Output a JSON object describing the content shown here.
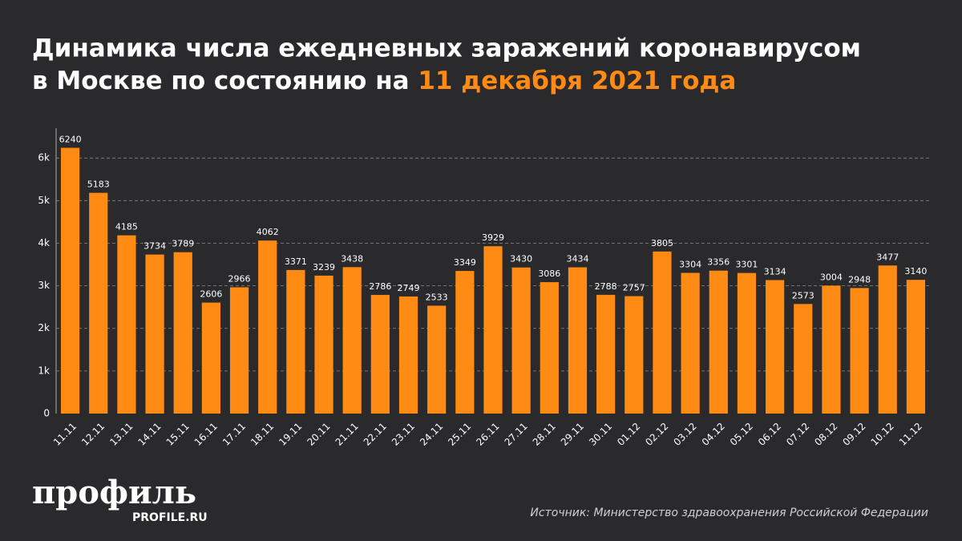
{
  "chart_data": {
    "type": "bar",
    "title": "Динамика числа ежедневных заражений коронавирусом",
    "title_line2": "в Москве по состоянию на",
    "title_date": "11 декабря 2021 года",
    "categories": [
      "11.11",
      "12.11",
      "13.11",
      "14.11",
      "15.11",
      "16.11",
      "17.11",
      "18.11",
      "19.11",
      "20.11",
      "21.11",
      "22.11",
      "23.11",
      "24.11",
      "25.11",
      "26.11",
      "27.11",
      "28.11",
      "29.11",
      "30.11",
      "01.12",
      "02.12",
      "03.12",
      "04.12",
      "05.12",
      "06.12",
      "07.12",
      "08.12",
      "09.12",
      "10.12",
      "11.12"
    ],
    "values": [
      6240,
      5183,
      4185,
      3734,
      3789,
      2606,
      2966,
      4062,
      3371,
      3239,
      3438,
      2786,
      2749,
      2533,
      3349,
      3929,
      3430,
      3086,
      3434,
      2788,
      2757,
      3805,
      3304,
      3356,
      3301,
      3134,
      2573,
      3004,
      2948,
      3477,
      3140
    ],
    "color": "#ff8a14",
    "ylim": [
      0,
      6700
    ],
    "yticks": [
      0,
      {
        "value": 1000,
        "label": "1k"
      },
      {
        "value": 2000,
        "label": "2k"
      },
      {
        "value": 3000,
        "label": "3k"
      },
      {
        "value": 4000,
        "label": "4k"
      },
      {
        "value": 5000,
        "label": "5k"
      },
      {
        "value": 6000,
        "label": "6k"
      }
    ],
    "grid": true,
    "logo": "профиль",
    "logo_site": "PROFILE.RU",
    "source": "Источник: Министерство здравоохранения Российской Федерации"
  }
}
